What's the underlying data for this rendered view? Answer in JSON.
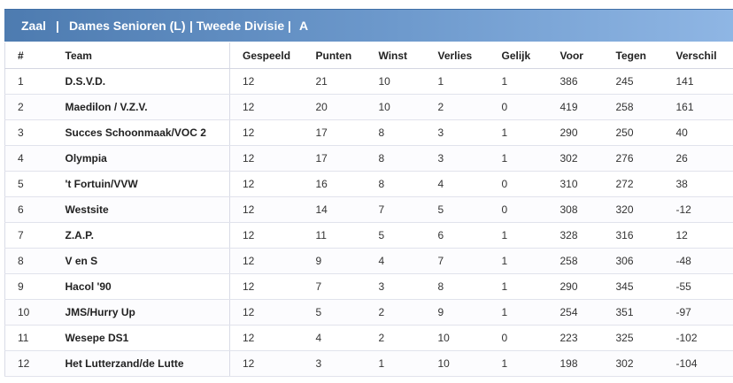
{
  "header": {
    "part1": "Zaal",
    "sep1": "|",
    "part2": "Dames Senioren (L)",
    "part3": "| Tweede Divisie |",
    "part4": "A"
  },
  "columns": [
    "#",
    "Team",
    "Gespeeld",
    "Punten",
    "Winst",
    "Verlies",
    "Gelijk",
    "Voor",
    "Tegen",
    "Verschil"
  ],
  "rows": [
    [
      "1",
      "D.S.V.D.",
      "12",
      "21",
      "10",
      "1",
      "1",
      "386",
      "245",
      "141"
    ],
    [
      "2",
      "Maedilon / V.Z.V.",
      "12",
      "20",
      "10",
      "2",
      "0",
      "419",
      "258",
      "161"
    ],
    [
      "3",
      "Succes Schoonmaak/VOC 2",
      "12",
      "17",
      "8",
      "3",
      "1",
      "290",
      "250",
      "40"
    ],
    [
      "4",
      "Olympia",
      "12",
      "17",
      "8",
      "3",
      "1",
      "302",
      "276",
      "26"
    ],
    [
      "5",
      "'t Fortuin/VVW",
      "12",
      "16",
      "8",
      "4",
      "0",
      "310",
      "272",
      "38"
    ],
    [
      "6",
      "Westsite",
      "12",
      "14",
      "7",
      "5",
      "0",
      "308",
      "320",
      "-12"
    ],
    [
      "7",
      "Z.A.P.",
      "12",
      "11",
      "5",
      "6",
      "1",
      "328",
      "316",
      "12"
    ],
    [
      "8",
      "V en S",
      "12",
      "9",
      "4",
      "7",
      "1",
      "258",
      "306",
      "-48"
    ],
    [
      "9",
      "Hacol '90",
      "12",
      "7",
      "3",
      "8",
      "1",
      "290",
      "345",
      "-55"
    ],
    [
      "10",
      "JMS/Hurry Up",
      "12",
      "5",
      "2",
      "9",
      "1",
      "254",
      "351",
      "-97"
    ],
    [
      "11",
      "Wesepe DS1",
      "12",
      "4",
      "2",
      "10",
      "0",
      "223",
      "325",
      "-102"
    ],
    [
      "12",
      "Het Lutterzand/de Lutte",
      "12",
      "3",
      "1",
      "10",
      "1",
      "198",
      "302",
      "-104"
    ]
  ]
}
